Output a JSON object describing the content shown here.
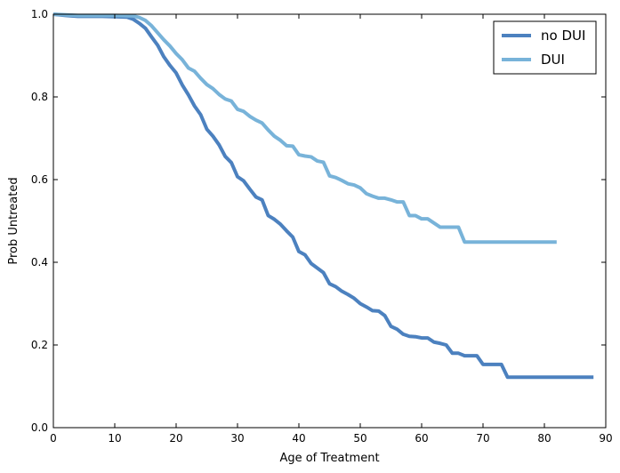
{
  "chart_data": {
    "type": "line",
    "title": "",
    "xlabel": "Age of Treatment",
    "ylabel": "Prob Untreated",
    "xlim": [
      0,
      90
    ],
    "ylim": [
      0,
      1.0
    ],
    "xticks": [
      0,
      10,
      20,
      30,
      40,
      50,
      60,
      70,
      80,
      90
    ],
    "yticks": [
      0.0,
      0.2,
      0.4,
      0.6,
      0.8,
      1.0
    ],
    "xtick_labels": [
      "0",
      "10",
      "20",
      "30",
      "40",
      "50",
      "60",
      "70",
      "80",
      "90"
    ],
    "ytick_labels": [
      "0.0",
      "0.2",
      "0.4",
      "0.6",
      "0.8",
      "1.0"
    ],
    "grid": false,
    "legend_position": "top-right",
    "series": [
      {
        "name": "no DUI",
        "color": "#4c81bf",
        "points": [
          [
            0,
            1.0
          ],
          [
            2,
            0.997
          ],
          [
            4,
            0.995
          ],
          [
            6,
            0.995
          ],
          [
            8,
            0.995
          ],
          [
            10,
            0.994
          ],
          [
            12,
            0.993
          ],
          [
            13,
            0.988
          ],
          [
            14,
            0.978
          ],
          [
            15,
            0.966
          ],
          [
            16,
            0.945
          ],
          [
            17,
            0.925
          ],
          [
            18,
            0.897
          ],
          [
            19,
            0.876
          ],
          [
            20,
            0.858
          ],
          [
            21,
            0.829
          ],
          [
            22,
            0.805
          ],
          [
            23,
            0.778
          ],
          [
            24,
            0.757
          ],
          [
            25,
            0.722
          ],
          [
            26,
            0.705
          ],
          [
            27,
            0.684
          ],
          [
            28,
            0.656
          ],
          [
            29,
            0.641
          ],
          [
            30,
            0.607
          ],
          [
            31,
            0.597
          ],
          [
            32,
            0.577
          ],
          [
            33,
            0.558
          ],
          [
            34,
            0.551
          ],
          [
            35,
            0.513
          ],
          [
            36,
            0.504
          ],
          [
            37,
            0.492
          ],
          [
            38,
            0.476
          ],
          [
            39,
            0.461
          ],
          [
            40,
            0.426
          ],
          [
            41,
            0.418
          ],
          [
            42,
            0.397
          ],
          [
            43,
            0.386
          ],
          [
            44,
            0.375
          ],
          [
            45,
            0.348
          ],
          [
            46,
            0.341
          ],
          [
            47,
            0.33
          ],
          [
            48,
            0.322
          ],
          [
            49,
            0.313
          ],
          [
            50,
            0.3
          ],
          [
            51,
            0.292
          ],
          [
            52,
            0.283
          ],
          [
            53,
            0.282
          ],
          [
            54,
            0.271
          ],
          [
            55,
            0.245
          ],
          [
            56,
            0.238
          ],
          [
            57,
            0.226
          ],
          [
            58,
            0.221
          ],
          [
            59,
            0.22
          ],
          [
            60,
            0.217
          ],
          [
            61,
            0.217
          ],
          [
            62,
            0.207
          ],
          [
            63,
            0.204
          ],
          [
            64,
            0.2
          ],
          [
            65,
            0.18
          ],
          [
            66,
            0.18
          ],
          [
            67,
            0.174
          ],
          [
            69,
            0.174
          ],
          [
            70,
            0.153
          ],
          [
            73,
            0.153
          ],
          [
            74,
            0.122
          ],
          [
            88,
            0.122
          ]
        ]
      },
      {
        "name": "DUI",
        "color": "#78b3d9",
        "points": [
          [
            0,
            1.0
          ],
          [
            4,
            0.997
          ],
          [
            10,
            0.997
          ],
          [
            13,
            0.996
          ],
          [
            14,
            0.992
          ],
          [
            15,
            0.985
          ],
          [
            16,
            0.972
          ],
          [
            17,
            0.955
          ],
          [
            18,
            0.938
          ],
          [
            19,
            0.923
          ],
          [
            20,
            0.905
          ],
          [
            21,
            0.89
          ],
          [
            22,
            0.87
          ],
          [
            23,
            0.862
          ],
          [
            24,
            0.845
          ],
          [
            25,
            0.83
          ],
          [
            26,
            0.82
          ],
          [
            27,
            0.806
          ],
          [
            28,
            0.795
          ],
          [
            29,
            0.79
          ],
          [
            30,
            0.77
          ],
          [
            31,
            0.765
          ],
          [
            32,
            0.753
          ],
          [
            33,
            0.744
          ],
          [
            34,
            0.737
          ],
          [
            35,
            0.72
          ],
          [
            36,
            0.705
          ],
          [
            37,
            0.695
          ],
          [
            38,
            0.682
          ],
          [
            39,
            0.681
          ],
          [
            40,
            0.66
          ],
          [
            41,
            0.657
          ],
          [
            42,
            0.655
          ],
          [
            43,
            0.645
          ],
          [
            44,
            0.642
          ],
          [
            45,
            0.609
          ],
          [
            46,
            0.605
          ],
          [
            47,
            0.598
          ],
          [
            48,
            0.59
          ],
          [
            49,
            0.587
          ],
          [
            50,
            0.58
          ],
          [
            51,
            0.566
          ],
          [
            52,
            0.56
          ],
          [
            53,
            0.555
          ],
          [
            54,
            0.555
          ],
          [
            55,
            0.551
          ],
          [
            56,
            0.546
          ],
          [
            57,
            0.546
          ],
          [
            58,
            0.513
          ],
          [
            59,
            0.513
          ],
          [
            60,
            0.505
          ],
          [
            61,
            0.505
          ],
          [
            62,
            0.495
          ],
          [
            63,
            0.485
          ],
          [
            66,
            0.485
          ],
          [
            67,
            0.449
          ],
          [
            82,
            0.449
          ]
        ]
      }
    ]
  }
}
